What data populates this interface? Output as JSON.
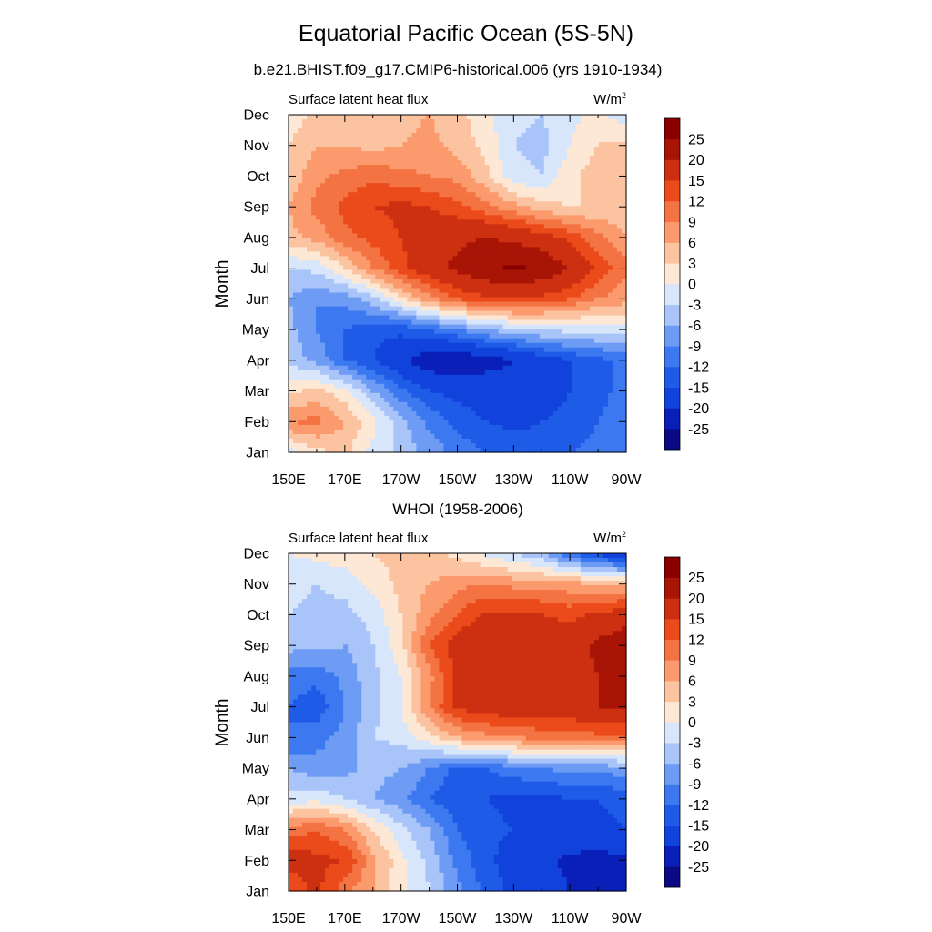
{
  "figure": {
    "title": "Equatorial Pacific Ocean (5S-5N)"
  },
  "chart_data": [
    {
      "type": "heatmap",
      "subtitle": "b.e21.BHIST.f09_g17.CMIP6-historical.006 (yrs 1910-1934)",
      "variable_label": "Surface latent heat flux",
      "units_base": "W/m",
      "units_exp": "2",
      "ylabel": "Month",
      "xticks": [
        "150E",
        "170E",
        "170W",
        "150W",
        "130W",
        "110W",
        "90W"
      ],
      "yticks": [
        "Jan",
        "Feb",
        "Mar",
        "Apr",
        "May",
        "Jun",
        "Jul",
        "Aug",
        "Sep",
        "Oct",
        "Nov",
        "Dec"
      ],
      "colorbar_labels": [
        "25",
        "20",
        "15",
        "12",
        "9",
        "6",
        "3",
        "0",
        "-3",
        "-6",
        "-9",
        "-12",
        "-15",
        "-20",
        "-25"
      ],
      "x_lon": [
        150,
        160,
        170,
        180,
        190,
        200,
        210,
        220,
        230,
        240,
        250,
        260,
        270
      ],
      "grid": [
        [
          -1,
          2,
          4,
          -1,
          -4,
          -7,
          -10,
          -12,
          -13,
          -13,
          -12,
          -11,
          -9
        ],
        [
          9,
          10,
          6,
          1,
          -5,
          -10,
          -13,
          -15,
          -16,
          -15,
          -14,
          -12,
          -10
        ],
        [
          2,
          4,
          1,
          -6,
          -11,
          -15,
          -16,
          -17,
          -18,
          -17,
          -15,
          -13,
          -11
        ],
        [
          -4,
          -7,
          -12,
          -15,
          -19,
          -23,
          -24,
          -22,
          -20,
          -17,
          -15,
          -13,
          -11
        ],
        [
          -5,
          -9,
          -12,
          -14,
          -14,
          -12,
          -9,
          -6,
          -4,
          -3,
          -2,
          -2,
          -1
        ],
        [
          -6,
          -9,
          -8,
          -4,
          2,
          8,
          12,
          14,
          15,
          14,
          12,
          9,
          7
        ],
        [
          -3,
          -2,
          3,
          9,
          14,
          18,
          21,
          24,
          26,
          24,
          20,
          14,
          10
        ],
        [
          5,
          7,
          11,
          13,
          15,
          18,
          19,
          20,
          19,
          17,
          14,
          10,
          6
        ],
        [
          6,
          10,
          13,
          15,
          16,
          15,
          13,
          10,
          7,
          4,
          3,
          3,
          4
        ],
        [
          4,
          8,
          10,
          11,
          10,
          9,
          8,
          4,
          -2,
          -3,
          2,
          5,
          6
        ],
        [
          3,
          6,
          6,
          5,
          6,
          7,
          5,
          2,
          -3,
          -4,
          0,
          3,
          4
        ],
        [
          1,
          4,
          5,
          4,
          5,
          6,
          4,
          1,
          -2,
          -3,
          -1,
          1,
          -2
        ]
      ]
    },
    {
      "type": "heatmap",
      "subtitle": "WHOI (1958-2006)",
      "variable_label": "Surface latent heat flux",
      "units_base": "W/m",
      "units_exp": "2",
      "ylabel": "Month",
      "xticks": [
        "150E",
        "170E",
        "170W",
        "150W",
        "130W",
        "110W",
        "90W"
      ],
      "yticks": [
        "Jan",
        "Feb",
        "Mar",
        "Apr",
        "May",
        "Jun",
        "Jul",
        "Aug",
        "Sep",
        "Oct",
        "Nov",
        "Dec"
      ],
      "colorbar_labels": [
        "25",
        "20",
        "15",
        "12",
        "9",
        "6",
        "3",
        "0",
        "-3",
        "-6",
        "-9",
        "-12",
        "-15",
        "-20",
        "-25"
      ],
      "x_lon": [
        150,
        160,
        170,
        180,
        190,
        200,
        210,
        220,
        230,
        240,
        250,
        260,
        270
      ],
      "grid": [
        [
          12,
          16,
          10,
          6,
          1,
          -3,
          -8,
          -13,
          -16,
          -18,
          -20,
          -22,
          -25
        ],
        [
          17,
          16,
          15,
          7,
          1,
          -4,
          -10,
          -14,
          -17,
          -19,
          -21,
          -22,
          -21
        ],
        [
          10,
          12,
          9,
          3,
          -2,
          -6,
          -12,
          -14,
          -15,
          -16,
          -16,
          -16,
          -15
        ],
        [
          -2,
          -1,
          -3,
          -6,
          -8,
          -12,
          -14,
          -15,
          -16,
          -16,
          -15,
          -15,
          -14
        ],
        [
          -6,
          -8,
          -7,
          -5,
          -6,
          -9,
          -13,
          -12,
          -10,
          -9,
          -8,
          -8,
          -7
        ],
        [
          -12,
          -10,
          -8,
          -3,
          -2,
          2,
          6,
          8,
          9,
          10,
          10,
          11,
          11
        ],
        [
          -12,
          -14,
          -9,
          -4,
          0,
          9,
          16,
          17,
          18,
          18,
          18,
          20,
          20
        ],
        [
          -10,
          -11,
          -8,
          -4,
          0,
          8,
          16,
          18,
          19,
          18,
          18,
          20,
          21
        ],
        [
          -5,
          -5,
          -6,
          -3,
          2,
          12,
          17,
          19,
          19,
          18,
          18,
          21,
          24
        ],
        [
          -3,
          -4,
          -4,
          -2,
          3,
          8,
          12,
          16,
          16,
          15,
          14,
          16,
          17
        ],
        [
          -2,
          -3,
          -2,
          1,
          4,
          6,
          8,
          9,
          8,
          8,
          7,
          6,
          6
        ],
        [
          0,
          1,
          2,
          3,
          4,
          4,
          2,
          -1,
          -3,
          -6,
          -12,
          -16,
          -20
        ]
      ]
    }
  ],
  "colors": {
    "levels": [
      -25,
      -20,
      -15,
      -12,
      -9,
      -6,
      -3,
      0,
      3,
      6,
      9,
      12,
      15,
      20,
      25
    ],
    "palette": [
      "#0a0a84",
      "#0a1eb8",
      "#1142dc",
      "#1e5ce8",
      "#3c78f0",
      "#6e9cf4",
      "#a8c4f8",
      "#d8e6fb",
      "#fde8d6",
      "#fcc3a0",
      "#fb9a6d",
      "#f47342",
      "#eb4a1a",
      "#cc3010",
      "#a81405",
      "#8a0000"
    ]
  }
}
